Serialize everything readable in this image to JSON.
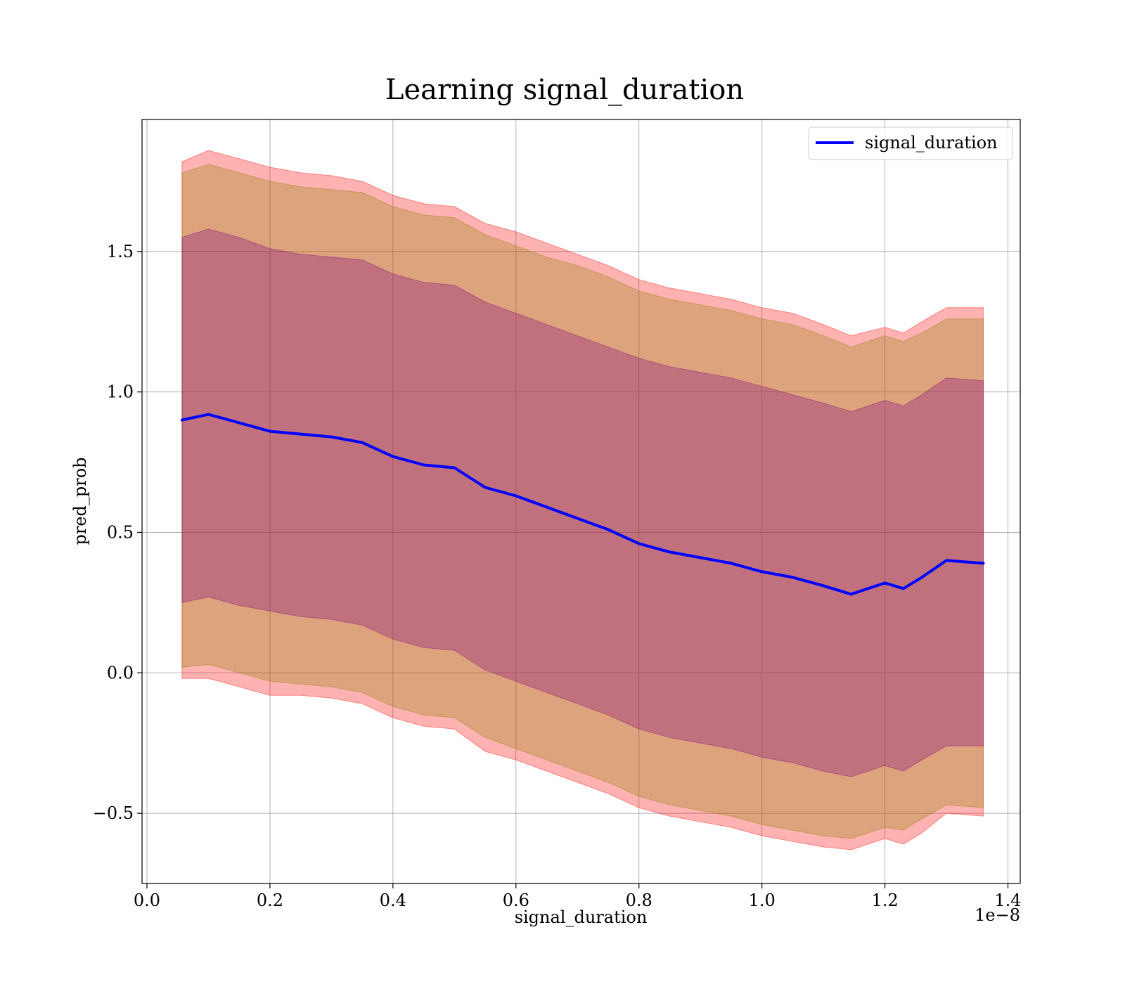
{
  "chart_data": {
    "type": "line",
    "title": "Learning signal_duration",
    "xlabel": "signal_duration",
    "ylabel": "pred_prob",
    "x_offset_label": "1e−8",
    "xlim": [
      -0.008,
      1.42
    ],
    "ylim": [
      -0.75,
      1.97
    ],
    "xticks": [
      0.0,
      0.2,
      0.4,
      0.6,
      0.8,
      1.0,
      1.2,
      1.4
    ],
    "xtick_labels": [
      "0.0",
      "0.2",
      "0.4",
      "0.6",
      "0.8",
      "1.0",
      "1.2",
      "1.4"
    ],
    "yticks": [
      -0.5,
      0.0,
      0.5,
      1.0,
      1.5
    ],
    "ytick_labels": [
      "−0.5",
      "0.0",
      "0.5",
      "1.0",
      "1.5"
    ],
    "grid": true,
    "legend_position": "upper right",
    "x": [
      0.057,
      0.1,
      0.15,
      0.2,
      0.25,
      0.3,
      0.35,
      0.4,
      0.45,
      0.5,
      0.55,
      0.6,
      0.65,
      0.7,
      0.75,
      0.8,
      0.85,
      0.9,
      0.95,
      1.0,
      1.05,
      1.1,
      1.145,
      1.2,
      1.23,
      1.26,
      1.3,
      1.36
    ],
    "series": [
      {
        "name": "signal_duration",
        "color": "#0000ff",
        "values": [
          0.9,
          0.92,
          0.89,
          0.86,
          0.85,
          0.84,
          0.82,
          0.77,
          0.74,
          0.73,
          0.66,
          0.63,
          0.59,
          0.55,
          0.51,
          0.46,
          0.43,
          0.41,
          0.39,
          0.36,
          0.34,
          0.31,
          0.28,
          0.32,
          0.3,
          0.34,
          0.4,
          0.39
        ]
      }
    ],
    "bands": [
      {
        "color": "#ff0000",
        "opacity": 0.3,
        "lower": [
          -0.02,
          -0.02,
          -0.05,
          -0.08,
          -0.08,
          -0.09,
          -0.11,
          -0.16,
          -0.19,
          -0.2,
          -0.28,
          -0.31,
          -0.35,
          -0.39,
          -0.43,
          -0.48,
          -0.51,
          -0.53,
          -0.55,
          -0.58,
          -0.6,
          -0.62,
          -0.63,
          -0.59,
          -0.61,
          -0.57,
          -0.5,
          -0.51
        ],
        "upper": [
          1.82,
          1.86,
          1.83,
          1.8,
          1.78,
          1.77,
          1.75,
          1.7,
          1.67,
          1.66,
          1.6,
          1.57,
          1.53,
          1.49,
          1.45,
          1.4,
          1.37,
          1.35,
          1.33,
          1.3,
          1.28,
          1.24,
          1.2,
          1.23,
          1.21,
          1.25,
          1.3,
          1.3
        ]
      },
      {
        "color": "#8b8000",
        "opacity": 0.3,
        "lower": [
          0.02,
          0.03,
          0.0,
          -0.03,
          -0.04,
          -0.05,
          -0.07,
          -0.12,
          -0.15,
          -0.16,
          -0.23,
          -0.27,
          -0.31,
          -0.35,
          -0.39,
          -0.44,
          -0.47,
          -0.49,
          -0.51,
          -0.54,
          -0.56,
          -0.58,
          -0.59,
          -0.55,
          -0.56,
          -0.52,
          -0.47,
          -0.48
        ],
        "upper": [
          1.78,
          1.81,
          1.78,
          1.75,
          1.73,
          1.72,
          1.71,
          1.66,
          1.63,
          1.62,
          1.56,
          1.52,
          1.48,
          1.45,
          1.41,
          1.36,
          1.33,
          1.31,
          1.29,
          1.26,
          1.24,
          1.2,
          1.16,
          1.2,
          1.18,
          1.21,
          1.26,
          1.26
        ]
      },
      {
        "color": "#800080",
        "opacity": 0.3,
        "lower": [
          0.25,
          0.27,
          0.24,
          0.22,
          0.2,
          0.19,
          0.17,
          0.12,
          0.09,
          0.08,
          0.01,
          -0.03,
          -0.07,
          -0.11,
          -0.15,
          -0.2,
          -0.23,
          -0.25,
          -0.27,
          -0.3,
          -0.32,
          -0.35,
          -0.37,
          -0.33,
          -0.35,
          -0.31,
          -0.26,
          -0.26
        ],
        "upper": [
          1.55,
          1.58,
          1.55,
          1.51,
          1.49,
          1.48,
          1.47,
          1.42,
          1.39,
          1.38,
          1.32,
          1.28,
          1.24,
          1.2,
          1.16,
          1.12,
          1.09,
          1.07,
          1.05,
          1.02,
          0.99,
          0.96,
          0.93,
          0.97,
          0.95,
          0.99,
          1.05,
          1.04
        ]
      }
    ]
  }
}
